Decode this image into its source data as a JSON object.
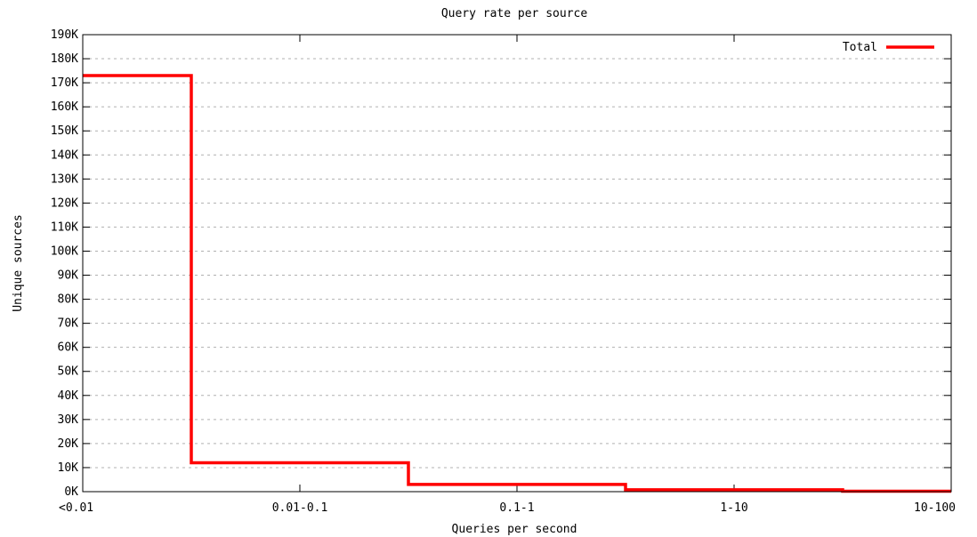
{
  "chart_data": {
    "type": "line",
    "style": "step",
    "title": "Query rate per source",
    "xlabel": "Queries per second",
    "ylabel": "Unique sources",
    "categories": [
      "<0.01",
      "0.01-0.1",
      "0.1-1",
      "1-10",
      "10-100"
    ],
    "series": [
      {
        "name": "Total",
        "color": "#ff0000",
        "values": [
          173000,
          12000,
          3000,
          800,
          200
        ]
      }
    ],
    "ylim": [
      0,
      190000
    ],
    "yticks": [
      {
        "value": 0,
        "label": "0K"
      },
      {
        "value": 10000,
        "label": "10K"
      },
      {
        "value": 20000,
        "label": "20K"
      },
      {
        "value": 30000,
        "label": "30K"
      },
      {
        "value": 40000,
        "label": "40K"
      },
      {
        "value": 50000,
        "label": "50K"
      },
      {
        "value": 60000,
        "label": "60K"
      },
      {
        "value": 70000,
        "label": "70K"
      },
      {
        "value": 80000,
        "label": "80K"
      },
      {
        "value": 90000,
        "label": "90K"
      },
      {
        "value": 100000,
        "label": "100K"
      },
      {
        "value": 110000,
        "label": "110K"
      },
      {
        "value": 120000,
        "label": "120K"
      },
      {
        "value": 130000,
        "label": "130K"
      },
      {
        "value": 140000,
        "label": "140K"
      },
      {
        "value": 150000,
        "label": "150K"
      },
      {
        "value": 160000,
        "label": "160K"
      },
      {
        "value": 170000,
        "label": "170K"
      },
      {
        "value": 180000,
        "label": "180K"
      },
      {
        "value": 190000,
        "label": "190K"
      }
    ],
    "grid": true,
    "legend_position": "top-right"
  }
}
